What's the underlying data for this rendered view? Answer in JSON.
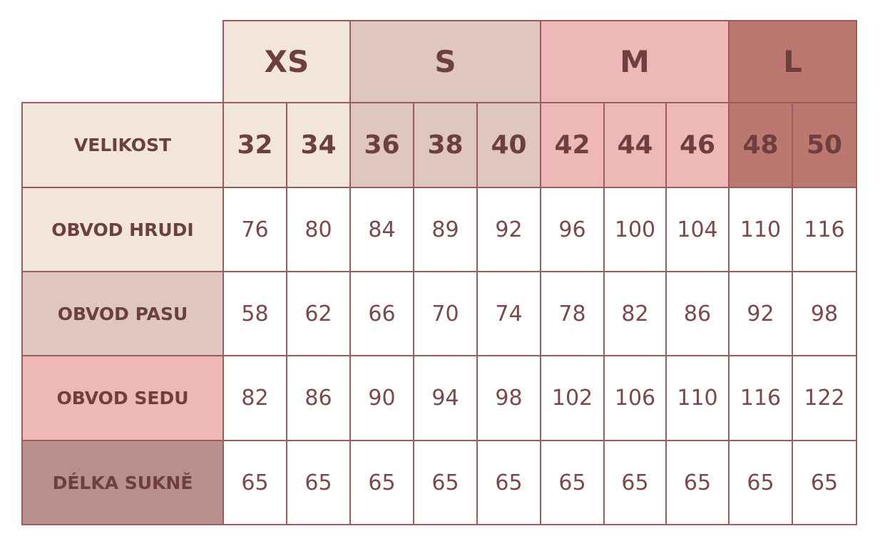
{
  "table": {
    "groups": [
      "XS",
      "S",
      "M",
      "L"
    ],
    "size_label": "VELIKOST",
    "sizes": [
      32,
      34,
      36,
      38,
      40,
      42,
      44,
      46,
      48,
      50
    ],
    "rows": [
      {
        "label": "OBVOD HRUDI",
        "values": [
          76,
          80,
          84,
          89,
          92,
          96,
          100,
          104,
          110,
          116
        ]
      },
      {
        "label": "OBVOD PASU",
        "values": [
          58,
          62,
          66,
          70,
          74,
          78,
          82,
          86,
          92,
          98
        ]
      },
      {
        "label": "OBVOD SEDU",
        "values": [
          82,
          86,
          90,
          94,
          98,
          102,
          106,
          110,
          116,
          122
        ]
      },
      {
        "label": "DÉLKA SUKNĚ",
        "values": [
          65,
          65,
          65,
          65,
          65,
          65,
          65,
          65,
          65,
          65
        ]
      }
    ]
  }
}
